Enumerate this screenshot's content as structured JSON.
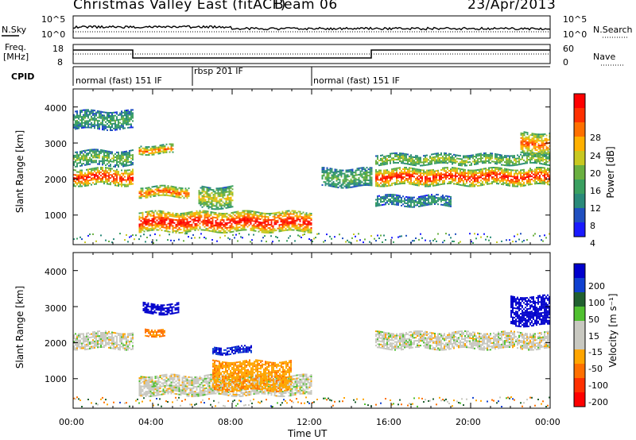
{
  "header": {
    "title": "Christmas Valley East (fitACF)",
    "beam": "Beam 06",
    "date": "23/Apr/2013"
  },
  "strips": {
    "nsky_label": "N.Sky",
    "nsearch_label": "N.Search",
    "noise_top_tick": "10^5",
    "noise_bottom_tick": "10^0",
    "freq_label_1": "Freq.",
    "freq_label_2": "[MHz]",
    "freq_ticks": [
      "18",
      "8"
    ],
    "nave_label": "Nave",
    "nave_ticks": [
      "60",
      "0"
    ],
    "cpid_label": "CPID"
  },
  "cpid_segments": [
    {
      "label": "normal (fast) 151 IF",
      "start_hr": 0.0,
      "end_hr": 6.0
    },
    {
      "label": "rbsp 201 IF",
      "start_hr": 6.0,
      "end_hr": 12.0
    },
    {
      "label": "normal (fast) 151 IF",
      "start_hr": 12.0,
      "end_hr": 24.0
    }
  ],
  "axes": {
    "ylabel": "Slant Range [km]",
    "y_ticks": [
      "1000",
      "2000",
      "3000",
      "4000"
    ],
    "xlabel": "Time UT",
    "x_ticks": [
      "00:00",
      "04:00",
      "08:00",
      "12:00",
      "16:00",
      "20:00",
      "00:00"
    ]
  },
  "colorbars": {
    "power": {
      "label": "Power [dB]",
      "ticks": [
        "28",
        "24",
        "20",
        "16",
        "12",
        "8",
        "4"
      ],
      "colors": [
        "#1a1aff",
        "#2050c0",
        "#2a8a7a",
        "#3aa060",
        "#6ab040",
        "#c8c820",
        "#ffb000",
        "#ff7000",
        "#ff3000",
        "#ff0000"
      ]
    },
    "velocity": {
      "label": "Velocity [m s⁻¹]",
      "ticks": [
        "200",
        "100",
        "50",
        "15",
        "-15",
        "-50",
        "-100",
        "-200"
      ],
      "colors": [
        "#0000cc",
        "#1040d0",
        "#206030",
        "#50c030",
        "#c8c8c0",
        "#c8c8c0",
        "#ffa500",
        "#ff7000",
        "#ff3000",
        "#ff0000"
      ]
    }
  },
  "chart_data": [
    {
      "type": "heatmap",
      "name": "Power",
      "x_range_hr": [
        0,
        24
      ],
      "y_range_km": [
        180,
        4500
      ],
      "bands": [
        {
          "t0": 0.0,
          "t1": 3.0,
          "r0": 1850,
          "r1": 2300,
          "level": 0.85
        },
        {
          "t0": 0.0,
          "t1": 3.0,
          "r0": 2400,
          "r1": 2800,
          "level": 0.45
        },
        {
          "t0": 0.0,
          "t1": 3.0,
          "r0": 3400,
          "r1": 3900,
          "level": 0.35
        },
        {
          "t0": 3.3,
          "t1": 5.0,
          "r0": 2700,
          "r1": 2950,
          "level": 0.7
        },
        {
          "t0": 3.3,
          "t1": 5.8,
          "r0": 1500,
          "r1": 1800,
          "level": 0.75
        },
        {
          "t0": 3.3,
          "t1": 12.0,
          "r0": 550,
          "r1": 1100,
          "level": 0.9
        },
        {
          "t0": 6.3,
          "t1": 8.0,
          "r0": 1200,
          "r1": 1800,
          "level": 0.55
        },
        {
          "t0": 12.5,
          "t1": 15.0,
          "r0": 1800,
          "r1": 2300,
          "level": 0.4
        },
        {
          "t0": 15.2,
          "t1": 24.0,
          "r0": 1850,
          "r1": 2300,
          "level": 0.85
        },
        {
          "t0": 15.2,
          "t1": 24.0,
          "r0": 2400,
          "r1": 2700,
          "level": 0.5
        },
        {
          "t0": 15.2,
          "t1": 19.0,
          "r0": 1250,
          "r1": 1550,
          "level": 0.3
        },
        {
          "t0": 22.5,
          "t1": 24.0,
          "r0": 2700,
          "r1": 3300,
          "level": 0.75
        }
      ]
    },
    {
      "type": "heatmap",
      "name": "Velocity",
      "x_range_hr": [
        0,
        24
      ],
      "y_range_km": [
        180,
        4500
      ],
      "bands": [
        {
          "t0": 0.0,
          "t1": 3.0,
          "r0": 1850,
          "r1": 2300,
          "vel": 0
        },
        {
          "t0": 3.5,
          "t1": 5.3,
          "r0": 2800,
          "r1": 3100,
          "vel": 180
        },
        {
          "t0": 3.6,
          "t1": 4.6,
          "r0": 2200,
          "r1": 2400,
          "vel": -60
        },
        {
          "t0": 3.3,
          "t1": 12.0,
          "r0": 550,
          "r1": 1100,
          "vel": 0
        },
        {
          "t0": 7.0,
          "t1": 11.0,
          "r0": 700,
          "r1": 1500,
          "vel": -40
        },
        {
          "t0": 7.0,
          "t1": 9.0,
          "r0": 1700,
          "r1": 1900,
          "vel": 150
        },
        {
          "t0": 15.2,
          "t1": 24.0,
          "r0": 1850,
          "r1": 2300,
          "vel": 0
        },
        {
          "t0": 22.0,
          "t1": 24.0,
          "r0": 2500,
          "r1": 3300,
          "vel": 220
        }
      ]
    }
  ]
}
